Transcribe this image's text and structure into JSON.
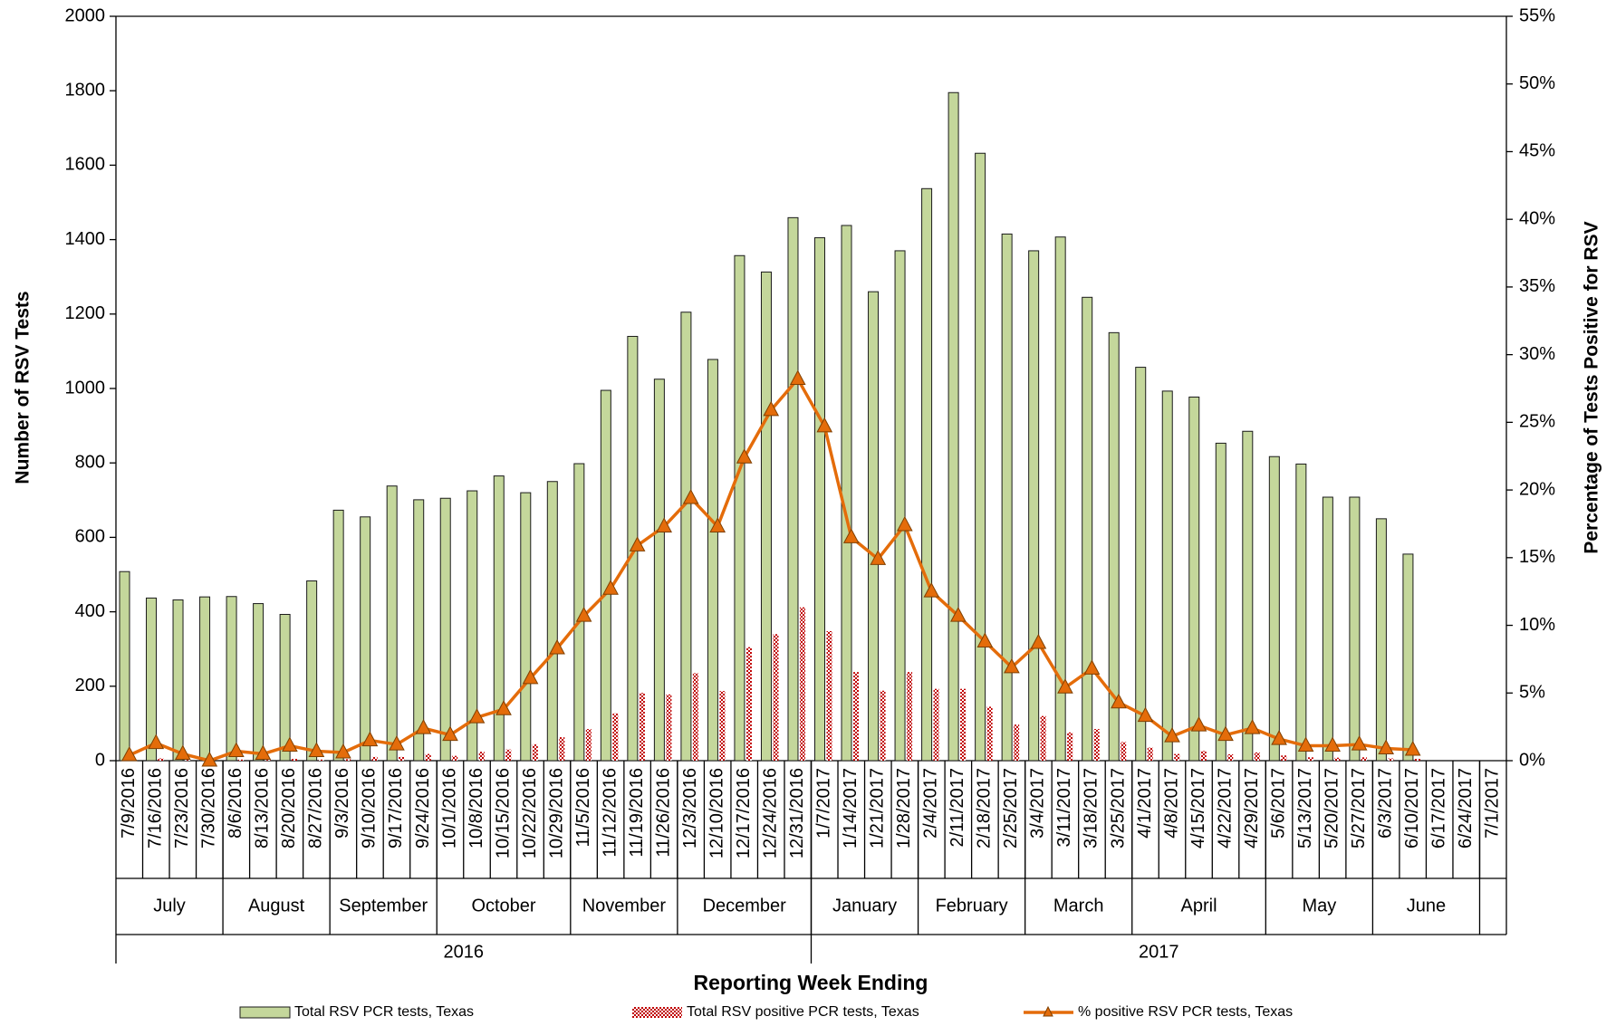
{
  "chart_data": {
    "type": "bar",
    "y_label": "Number of RSV Tests",
    "y2_label": "Percentage of Tests Positive for RSV",
    "x_label": "Reporting Week Ending",
    "categories": [
      "7/9/2016",
      "7/16/2016",
      "7/23/2016",
      "7/30/2016",
      "8/6/2016",
      "8/13/2016",
      "8/20/2016",
      "8/27/2016",
      "9/3/2016",
      "9/10/2016",
      "9/17/2016",
      "9/24/2016",
      "10/1/2016",
      "10/8/2016",
      "10/15/2016",
      "10/22/2016",
      "10/29/2016",
      "11/5/2016",
      "11/12/2016",
      "11/19/2016",
      "11/26/2016",
      "12/3/2016",
      "12/10/2016",
      "12/17/2016",
      "12/24/2016",
      "12/31/2016",
      "1/7/2017",
      "1/14/2017",
      "1/21/2017",
      "1/28/2017",
      "2/4/2017",
      "2/11/2017",
      "2/18/2017",
      "2/25/2017",
      "3/4/2017",
      "3/11/2017",
      "3/18/2017",
      "3/25/2017",
      "4/1/2017",
      "4/8/2017",
      "4/15/2017",
      "4/22/2017",
      "4/29/2017",
      "5/6/2017",
      "5/13/2017",
      "5/20/2017",
      "5/27/2017",
      "6/3/2017",
      "6/10/2017",
      "6/17/2017",
      "6/24/2017",
      "7/1/2017"
    ],
    "months": [
      "July",
      "August",
      "September",
      "October",
      "November",
      "December",
      "January",
      "February",
      "March",
      "April",
      "May",
      "June"
    ],
    "years": [
      "2016",
      "2017"
    ],
    "series": [
      {
        "name": "Total RSV PCR tests, Texas",
        "type": "bar",
        "color": "#c4d79b",
        "values": [
          508,
          437,
          432,
          440,
          441,
          422,
          393,
          483,
          673,
          655,
          738,
          701,
          705,
          725,
          765,
          720,
          750,
          798,
          995,
          1140,
          1025,
          1205,
          1078,
          1357,
          1313,
          1459,
          1405,
          1438,
          1260,
          1370,
          1537,
          1795,
          1632,
          1415,
          1370,
          1407,
          1245,
          1150,
          1057,
          993,
          977,
          853,
          885,
          817,
          797,
          708,
          708,
          650,
          555,
          null,
          null,
          null
        ]
      },
      {
        "name": "Total RSV positive PCR tests, Texas",
        "type": "bar",
        "color": "#c00000",
        "values": [
          2,
          6,
          2,
          0,
          3,
          2,
          5,
          3,
          4,
          10,
          10,
          18,
          13,
          24,
          30,
          44,
          63,
          85,
          127,
          182,
          178,
          235,
          187,
          305,
          340,
          412,
          348,
          238,
          188,
          238,
          193,
          193,
          145,
          97,
          120,
          76,
          85,
          50,
          35,
          18,
          26,
          17,
          22,
          14,
          9,
          8,
          9,
          6,
          5,
          null,
          null,
          null
        ]
      },
      {
        "name": "% positive RSV PCR tests, Texas",
        "type": "line",
        "axis": "y2",
        "color": "#e46c0a",
        "values": [
          0.4,
          1.3,
          0.5,
          0,
          0.7,
          0.5,
          1.1,
          0.7,
          0.6,
          1.5,
          1.2,
          2.4,
          1.9,
          3.2,
          3.8,
          6.1,
          8.3,
          10.7,
          12.7,
          15.9,
          17.3,
          19.4,
          17.3,
          22.4,
          25.9,
          28.2,
          24.7,
          16.5,
          14.9,
          17.4,
          12.5,
          10.7,
          8.8,
          6.9,
          8.7,
          5.4,
          6.8,
          4.3,
          3.3,
          1.8,
          2.6,
          1.9,
          2.4,
          1.6,
          1.1,
          1.1,
          1.2,
          0.9,
          0.8,
          null,
          null,
          null
        ]
      }
    ],
    "ylim": [
      0,
      2000
    ],
    "yticks": [
      0,
      200,
      400,
      600,
      800,
      1000,
      1200,
      1400,
      1600,
      1800,
      2000
    ],
    "y2lim": [
      0,
      55
    ],
    "y2ticks": [
      {
        "value": 0,
        "label": "0%"
      },
      {
        "value": 5,
        "label": "5%"
      },
      {
        "value": 10,
        "label": "10%"
      },
      {
        "value": 15,
        "label": "15%"
      },
      {
        "value": 20,
        "label": "20%"
      },
      {
        "value": 25,
        "label": "25%"
      },
      {
        "value": 30,
        "label": "30%"
      },
      {
        "value": 35,
        "label": "35%"
      },
      {
        "value": 40,
        "label": "40%"
      },
      {
        "value": 45,
        "label": "45%"
      },
      {
        "value": 50,
        "label": "50%"
      },
      {
        "value": 55,
        "label": "55%"
      }
    ]
  }
}
